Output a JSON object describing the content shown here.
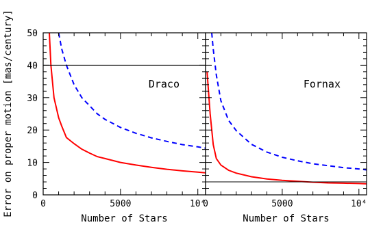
{
  "chart_data": {
    "type": "line",
    "ylabel": "Error on proper motion [mas/century]",
    "y_ticks": [
      "0",
      "10",
      "20",
      "30",
      "40",
      "50"
    ],
    "ylim": [
      0,
      50
    ],
    "xlim": [
      0,
      10500
    ],
    "grid": false,
    "panels": [
      {
        "label": "Draco",
        "xlabel": "Number of Stars",
        "x_ticks": [
          {
            "value": 0,
            "label": "0"
          },
          {
            "value": 5000,
            "label": "5000"
          },
          {
            "value": 10000,
            "label": "10⁴"
          }
        ],
        "series": [
          {
            "color": "#ff0000",
            "style": "solid",
            "x": [
              400,
              500,
              700,
              1000,
              1200,
              1500,
              2000,
              2500,
              3000,
              3500,
              4000,
              5000,
              6000,
              7000,
              8000,
              9000,
              10000,
              10500
            ],
            "y": [
              50,
              40,
              30,
              23.8,
              21.2,
              17.7,
              15.8,
              14.1,
              12.9,
              11.8,
              11.2,
              10.0,
              9.2,
              8.5,
              7.9,
              7.4,
              7.0,
              6.8
            ]
          },
          {
            "color": "#0000ff",
            "style": "dashed",
            "x": [
              1000,
              1200,
              1500,
              2000,
              2500,
              3000,
              3500,
              4000,
              5000,
              6000,
              7000,
              8000,
              9000,
              10000,
              10500
            ],
            "y": [
              50,
              45,
              40,
              34,
              30,
              27.5,
              25,
              23.3,
              20.8,
              19,
              17.6,
              16.5,
              15.5,
              14.8,
              14.4
            ]
          },
          {
            "color": "#000000",
            "style": "thin",
            "x": [
              0,
              10500
            ],
            "y": [
              40,
              40
            ]
          }
        ]
      },
      {
        "label": "Fornax",
        "xlabel": "Number of Stars",
        "x_ticks": [
          {
            "value": 0,
            "label": "0"
          },
          {
            "value": 5000,
            "label": "5000"
          },
          {
            "value": 10000,
            "label": "10⁴"
          }
        ],
        "series": [
          {
            "color": "#ff0000",
            "style": "solid",
            "x": [
              100,
              300,
              500,
              700,
              1000,
              1500,
              2000,
              3000,
              4000,
              5000,
              6000,
              7000,
              8000,
              9000,
              10000,
              10500
            ],
            "y": [
              38,
              25,
              15.5,
              11.2,
              9.2,
              7.6,
              6.7,
              5.6,
              4.9,
              4.5,
              4.2,
              3.9,
              3.7,
              3.6,
              3.5,
              3.4
            ]
          },
          {
            "color": "#0000ff",
            "style": "dashed",
            "x": [
              400,
              500,
              700,
              1000,
              1500,
              2000,
              3000,
              4000,
              5000,
              6000,
              7000,
              8000,
              9000,
              10000,
              10500
            ],
            "y": [
              50,
              45,
              37,
              29,
              23,
              19.8,
              15.6,
              13.2,
              11.6,
              10.5,
              9.6,
              9.0,
              8.4,
              8.0,
              7.7
            ]
          },
          {
            "color": "#000000",
            "style": "thin",
            "x": [
              0,
              10500
            ],
            "y": [
              4,
              4
            ]
          }
        ]
      }
    ]
  }
}
